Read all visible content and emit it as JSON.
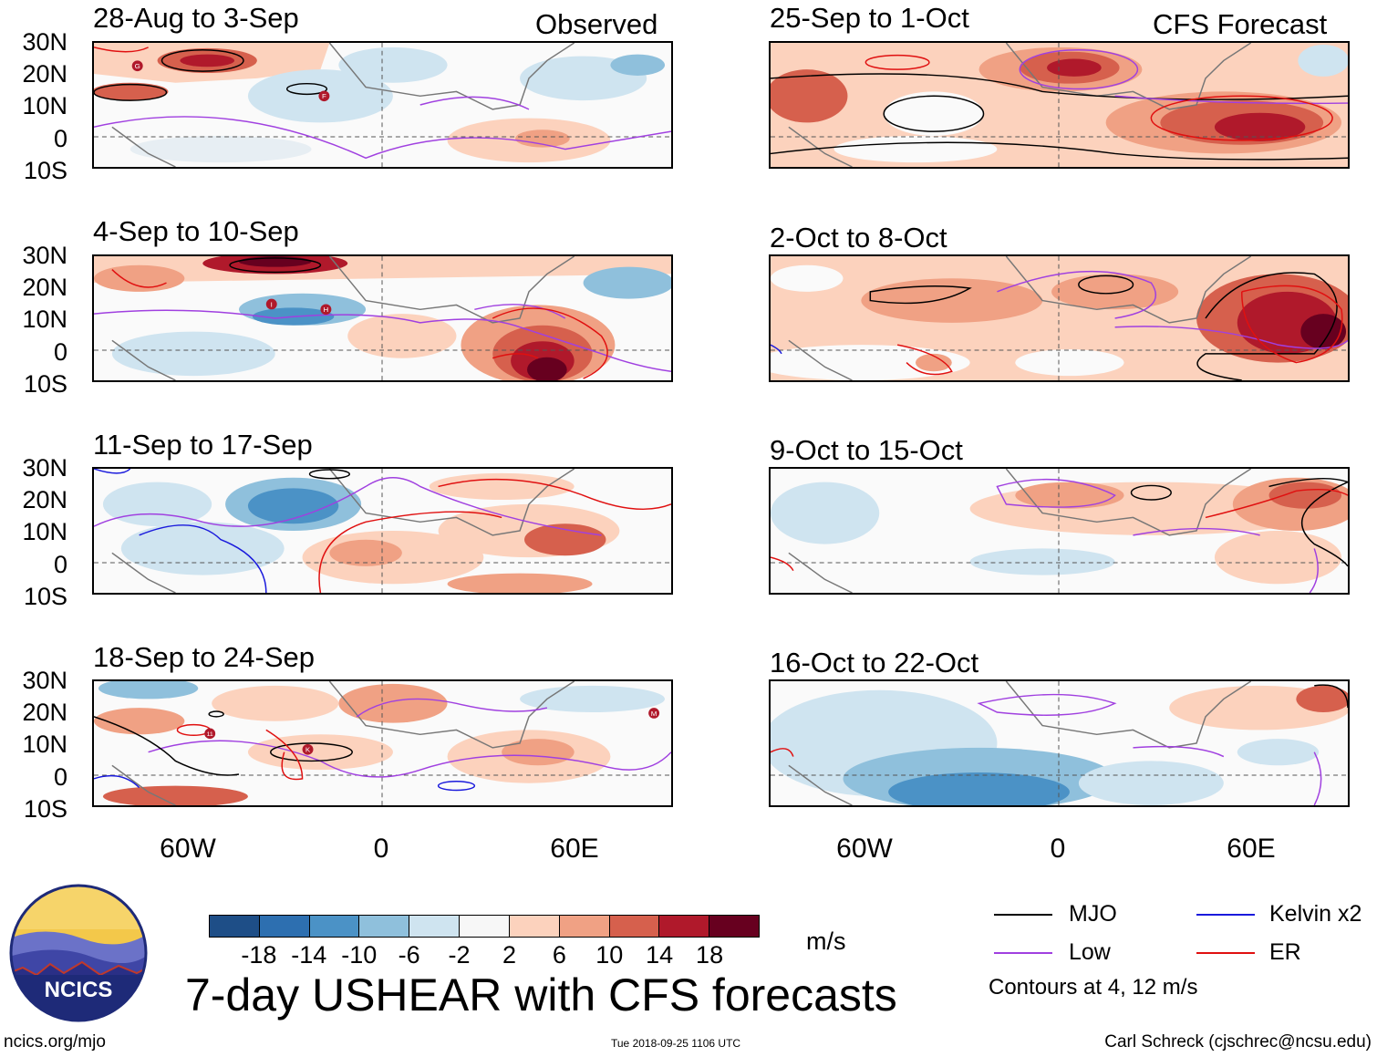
{
  "left_column": {
    "tag": "Observed",
    "panels": [
      {
        "title": "28-Aug to 3-Sep"
      },
      {
        "title": "4-Sep to 10-Sep"
      },
      {
        "title": "11-Sep to 17-Sep"
      },
      {
        "title": "18-Sep to 24-Sep"
      }
    ]
  },
  "right_column": {
    "tag": "CFS Forecast",
    "panels": [
      {
        "title": "25-Sep to 1-Oct"
      },
      {
        "title": "2-Oct to 8-Oct"
      },
      {
        "title": "9-Oct to 15-Oct"
      },
      {
        "title": "16-Oct to 22-Oct"
      }
    ]
  },
  "lat_labels": [
    "30N",
    "20N",
    "10N",
    "0",
    "10S"
  ],
  "lon_labels": [
    "60W",
    "0",
    "60E"
  ],
  "colorbar": {
    "ticks": [
      "-18",
      "-14",
      "-10",
      "-6",
      "-2",
      "2",
      "6",
      "10",
      "14",
      "18"
    ],
    "colors": [
      "#1e4e87",
      "#2d6fb0",
      "#4b92c6",
      "#8fc0dc",
      "#cfe4f0",
      "#f7f7f7",
      "#fcd2bd",
      "#f0a184",
      "#d6604d",
      "#b0192b",
      "#67001f"
    ],
    "units": "m/s"
  },
  "main_title": "7-day USHEAR with CFS forecasts",
  "legend": {
    "items": [
      {
        "label": "MJO",
        "color": "#000000"
      },
      {
        "label": "Kelvin x2",
        "color": "#1a1adc"
      },
      {
        "label": "Low",
        "color": "#a040e0"
      },
      {
        "label": "ER",
        "color": "#e01010"
      }
    ],
    "note": "Contours at 4, 12 m/s"
  },
  "logo": {
    "text": "NCICS"
  },
  "footer": {
    "url": "ncics.org/mjo",
    "timestamp": "Tue 2018-09-25 1106 UTC",
    "credit": "Carl Schreck (cjschrec@ncsu.edu)"
  },
  "storm_markers": [
    {
      "panel": 0,
      "label": "G"
    },
    {
      "panel": 0,
      "label": "F"
    },
    {
      "panel": 1,
      "label": "I"
    },
    {
      "panel": 1,
      "label": "H"
    },
    {
      "panel": 3,
      "label": "11"
    },
    {
      "panel": 3,
      "label": "K"
    },
    {
      "panel": 3,
      "label": "M"
    }
  ]
}
